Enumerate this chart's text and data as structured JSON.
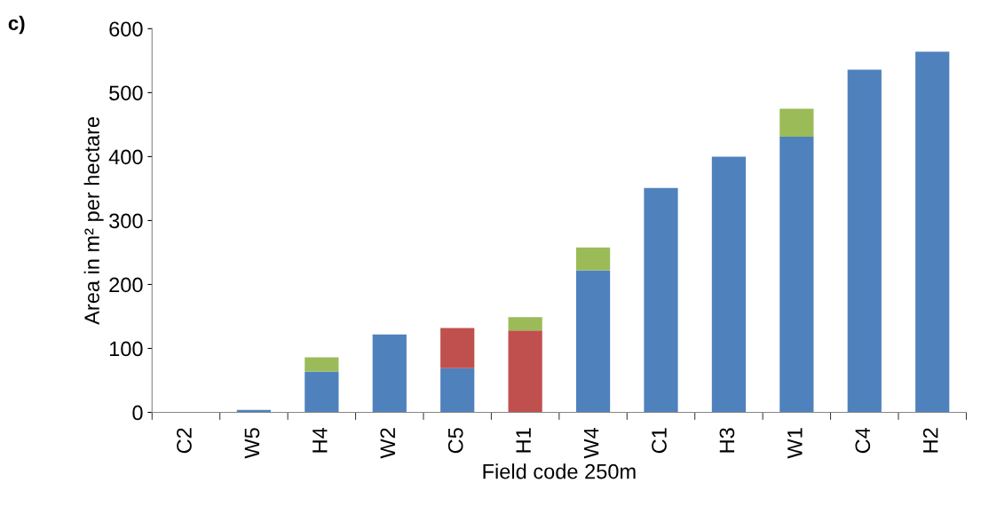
{
  "chart_data": {
    "type": "bar",
    "stacked": true,
    "annotations": [
      "c)"
    ],
    "xlabel": "Field code 250m",
    "ylabel": "Area in m² per hectare",
    "categories": [
      "C2",
      "W5",
      "H4",
      "W2",
      "C5",
      "H1",
      "W4",
      "C1",
      "H3",
      "W1",
      "C4",
      "H2"
    ],
    "series": [
      {
        "color": "#4f81bd",
        "values": [
          0,
          4,
          64,
          122,
          69,
          0,
          222,
          351,
          400,
          431,
          536,
          564
        ]
      },
      {
        "color": "#c0504d",
        "values": [
          0,
          0,
          0,
          0,
          63,
          128,
          0,
          0,
          0,
          0,
          0,
          0
        ]
      },
      {
        "color": "#9bbb59",
        "values": [
          0,
          0,
          22,
          0,
          0,
          21,
          36,
          0,
          0,
          44,
          0,
          0
        ]
      }
    ],
    "ylim": [
      0,
      600
    ],
    "yticks": [
      0,
      100,
      200,
      300,
      400,
      500,
      600
    ],
    "grid": false,
    "legend": false
  }
}
